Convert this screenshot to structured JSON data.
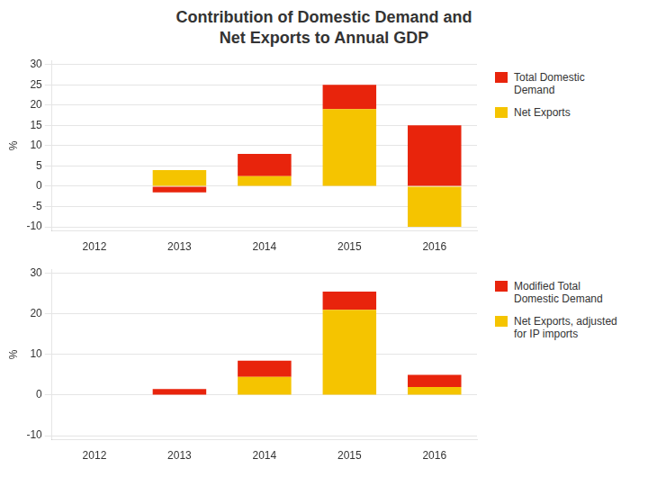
{
  "chart_data": [
    {
      "type": "bar",
      "title": "Contribution of Domestic Demand and\nNet Exports to Annual GDP",
      "categories": [
        "2012",
        "2013",
        "2014",
        "2015",
        "2016"
      ],
      "series": [
        {
          "name": "Total Domestic\nDemand",
          "color": "#e8240c",
          "values": [
            0,
            -1.5,
            5.5,
            6.0,
            15.0
          ]
        },
        {
          "name": "Net Exports",
          "color": "#f5c400",
          "values": [
            0,
            4.0,
            2.5,
            19.0,
            -10.0
          ]
        }
      ],
      "ylabel": "%",
      "ylim": [
        -11,
        31
      ],
      "yticks": [
        -10,
        -5,
        0,
        5,
        10,
        15,
        20,
        25,
        30
      ],
      "grid": true,
      "stacked": true,
      "legend": "right"
    },
    {
      "type": "bar",
      "categories": [
        "2012",
        "2013",
        "2014",
        "2015",
        "2016"
      ],
      "series": [
        {
          "name": "Modified Total\nDomestic Demand",
          "color": "#e8240c",
          "values": [
            0,
            1.5,
            4.0,
            4.5,
            3.0
          ]
        },
        {
          "name": "Net Exports, adjusted\nfor IP imports",
          "color": "#f5c400",
          "values": [
            0,
            0.0,
            4.5,
            21.0,
            2.0
          ]
        }
      ],
      "ylabel": "%",
      "ylim": [
        -11,
        31
      ],
      "yticks": [
        -10,
        0,
        10,
        20,
        30
      ],
      "grid": true,
      "stacked": true,
      "legend": "right"
    }
  ]
}
